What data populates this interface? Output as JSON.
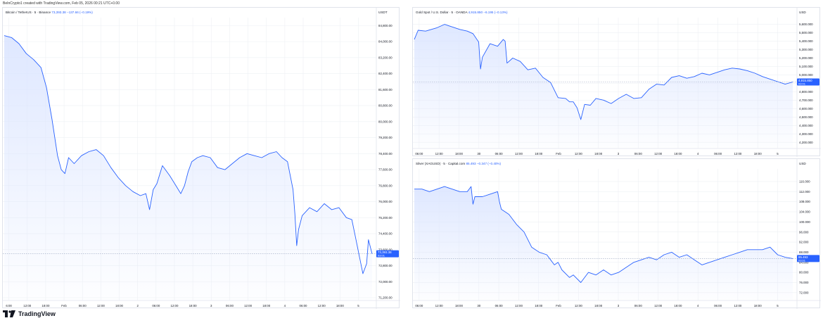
{
  "header_note": "BeInCrypto1 created with TradingView.com, Feb 05, 2026 00:21 UTC+0.00",
  "brand": "TradingView",
  "colors": {
    "line": "#2962ff",
    "fill": "#dbe5ff",
    "grid": "#eef0f4",
    "badge": "#2962ff",
    "price_line": "#9aa6c0"
  },
  "chart_data": [
    {
      "type": "area",
      "legend_title": "Bitcoin / TetherUS · 5 · Binance",
      "legend_value": "73,393.38",
      "legend_change": "−137.66 (−0.19%)",
      "currency": "USDT",
      "last_value": 73393.38,
      "last_label": "73,393.38",
      "countdown": "03:01",
      "ylim": [
        71200,
        85200
      ],
      "y_ticks": [
        71200,
        72000,
        72800,
        73600,
        74400,
        75200,
        76000,
        76800,
        77600,
        78400,
        79200,
        80000,
        80800,
        81600,
        82400,
        83200,
        84000,
        84800
      ],
      "y_tick_labels": [
        "71,200.00",
        "72,000.00",
        "72,800.00",
        "73,600.00",
        "74,400.00",
        "75,200.00",
        "76,000.00",
        "76,800.00",
        "77,600.00",
        "78,400.00",
        "79,200.00",
        "80,000.00",
        "80,800.00",
        "81,600.00",
        "82,400.00",
        "83,200.00",
        "84,000.00",
        "84,800.00"
      ],
      "x_tick_labels": [
        "6:00",
        "12:00",
        "18:00",
        "Feb",
        "06:00",
        "12:00",
        "18:00",
        "2",
        "06:00",
        "12:00",
        "18:00",
        "3",
        "06:00",
        "12:00",
        "18:00",
        "4",
        "06:00",
        "12:00",
        "18:00",
        "5"
      ],
      "x": [
        0,
        0.02,
        0.04,
        0.06,
        0.08,
        0.1,
        0.115,
        0.13,
        0.145,
        0.155,
        0.165,
        0.175,
        0.19,
        0.21,
        0.23,
        0.25,
        0.27,
        0.29,
        0.31,
        0.33,
        0.35,
        0.37,
        0.385,
        0.395,
        0.405,
        0.415,
        0.43,
        0.45,
        0.47,
        0.48,
        0.49,
        0.5,
        0.51,
        0.525,
        0.54,
        0.56,
        0.58,
        0.6,
        0.62,
        0.64,
        0.66,
        0.68,
        0.7,
        0.72,
        0.74,
        0.755,
        0.77,
        0.785,
        0.79,
        0.795,
        0.8,
        0.81,
        0.83,
        0.85,
        0.87,
        0.89,
        0.91,
        0.93,
        0.945,
        0.955,
        0.965,
        0.975,
        0.985,
        0.99,
        1.0
      ],
      "y": [
        84300,
        84200,
        83900,
        83400,
        83100,
        82700,
        81700,
        80100,
        78300,
        77600,
        77400,
        78200,
        77900,
        78300,
        78500,
        78600,
        78300,
        77700,
        77200,
        76800,
        76500,
        76300,
        76400,
        75600,
        76600,
        76900,
        77800,
        77300,
        76700,
        76400,
        76800,
        77500,
        78000,
        78200,
        78300,
        78200,
        77700,
        77600,
        77900,
        78200,
        78400,
        78300,
        78200,
        78400,
        78500,
        78200,
        78000,
        76600,
        75400,
        73800,
        74600,
        75300,
        75700,
        75500,
        75900,
        75600,
        75700,
        75200,
        75100,
        74200,
        73300,
        72400,
        72900,
        74100,
        73393
      ]
    },
    {
      "type": "area",
      "legend_title": "Gold Spot / U.S. Dollar · 5 · OANDA",
      "legend_value": "4,915.850",
      "legend_change": "−6.195 (−0.13%)",
      "currency": "USD",
      "last_value": 4915.85,
      "last_label": "4,915.850",
      "countdown": "03:01",
      "ylim": [
        4160,
        5680
      ],
      "y_ticks": [
        4200,
        4300,
        4400,
        4500,
        4600,
        4700,
        4800,
        4900,
        5000,
        5100,
        5200,
        5300,
        5400,
        5500,
        5600
      ],
      "y_tick_labels": [
        "4,200.000",
        "4,300.000",
        "4,400.000",
        "4,500.000",
        "4,600.000",
        "4,700.000",
        "4,800.000",
        "4,900.000",
        "5,000.000",
        "5,100.000",
        "5,200.000",
        "5,300.000",
        "5,400.000",
        "5,500.000",
        "5,600.000"
      ],
      "x_tick_labels": [
        "06:00",
        "12:00",
        "18:00",
        "30",
        "06:00",
        "12:00",
        "18:00",
        "Feb",
        "12:00",
        "18:00",
        "3",
        "06:00",
        "12:00",
        "18:00",
        "4",
        "06:00",
        "12:00",
        "18:00",
        "5"
      ],
      "x": [
        0,
        0.01,
        0.03,
        0.06,
        0.08,
        0.1,
        0.12,
        0.14,
        0.155,
        0.17,
        0.175,
        0.18,
        0.2,
        0.22,
        0.235,
        0.24,
        0.245,
        0.26,
        0.28,
        0.3,
        0.32,
        0.34,
        0.36,
        0.38,
        0.4,
        0.41,
        0.42,
        0.43,
        0.44,
        0.45,
        0.465,
        0.48,
        0.5,
        0.52,
        0.54,
        0.56,
        0.58,
        0.6,
        0.62,
        0.64,
        0.66,
        0.68,
        0.7,
        0.72,
        0.74,
        0.76,
        0.78,
        0.8,
        0.82,
        0.84,
        0.86,
        0.88,
        0.9,
        0.92,
        0.94,
        0.96,
        0.98,
        1.0
      ],
      "y": [
        5420,
        5530,
        5520,
        5560,
        5600,
        5570,
        5540,
        5520,
        5490,
        5390,
        5070,
        5210,
        5370,
        5340,
        5420,
        5400,
        5140,
        5200,
        5160,
        5060,
        5080,
        4970,
        4910,
        4730,
        4720,
        4680,
        4680,
        4610,
        4470,
        4650,
        4640,
        4720,
        4700,
        4660,
        4720,
        4770,
        4720,
        4730,
        4830,
        4890,
        4880,
        4970,
        4990,
        4960,
        4980,
        5020,
        5000,
        5030,
        5060,
        5080,
        5070,
        5050,
        5020,
        4980,
        4950,
        4920,
        4890,
        4916
      ]
    },
    {
      "type": "area",
      "legend_title": "Silver (XAGUSD) · 5 · Capital.com",
      "legend_value": "85.493",
      "legend_change": "−0.347 (−0.40%)",
      "currency": "USD",
      "last_value": 85.493,
      "last_label": "85.493",
      "countdown": "03:01",
      "ylim": [
        70,
        121
      ],
      "y_ticks": [
        72,
        76,
        80,
        84,
        88,
        92,
        96,
        100,
        104,
        108,
        112,
        116
      ],
      "y_tick_labels": [
        "72.000",
        "76.000",
        "80.000",
        "84.000",
        "88.000",
        "92.000",
        "96.000",
        "100.000",
        "104.000",
        "108.000",
        "112.000",
        "116.000"
      ],
      "x_tick_labels": [
        "06:00",
        "12:00",
        "18:00",
        "30",
        "06:00",
        "12:00",
        "18:00",
        "Feb",
        "12:00",
        "18:00",
        "3",
        "06:00",
        "12:00",
        "18:00",
        "4",
        "06:00",
        "12:00",
        "18:00",
        "5"
      ],
      "x": [
        0,
        0.02,
        0.04,
        0.06,
        0.08,
        0.1,
        0.12,
        0.14,
        0.15,
        0.155,
        0.16,
        0.18,
        0.2,
        0.22,
        0.225,
        0.23,
        0.25,
        0.27,
        0.29,
        0.31,
        0.33,
        0.35,
        0.36,
        0.37,
        0.38,
        0.39,
        0.41,
        0.42,
        0.44,
        0.46,
        0.48,
        0.5,
        0.52,
        0.54,
        0.56,
        0.58,
        0.6,
        0.62,
        0.64,
        0.66,
        0.68,
        0.7,
        0.72,
        0.74,
        0.76,
        0.78,
        0.8,
        0.82,
        0.84,
        0.86,
        0.88,
        0.9,
        0.92,
        0.94,
        0.96,
        0.98,
        1.0
      ],
      "y": [
        113,
        113,
        112,
        113,
        114,
        113,
        112,
        112,
        114,
        107,
        110,
        110,
        111,
        112,
        108,
        105,
        103,
        99,
        96,
        90,
        88,
        87,
        85,
        83,
        84,
        81,
        78,
        79,
        76,
        80,
        79,
        81,
        79,
        80,
        82,
        84,
        85,
        86,
        85,
        87,
        88,
        86,
        87,
        85,
        83,
        84,
        85,
        86,
        87,
        88,
        89,
        89,
        89,
        90,
        87,
        86,
        85.5
      ]
    }
  ]
}
